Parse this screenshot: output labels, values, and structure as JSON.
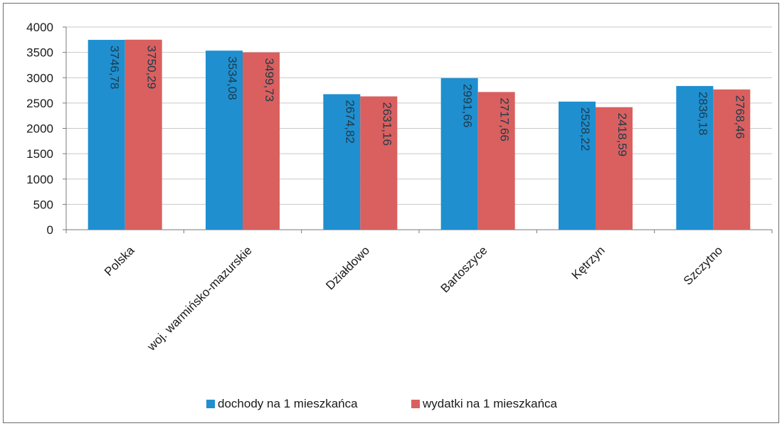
{
  "chart_data": {
    "type": "bar",
    "title": "",
    "xlabel": "",
    "ylabel": "",
    "ylim": [
      0,
      4000
    ],
    "yticks": [
      0,
      500,
      1000,
      1500,
      2000,
      2500,
      3000,
      3500,
      4000
    ],
    "grid": true,
    "legend_position": "bottom",
    "categories": [
      "Polska",
      "woj. warmińsko-mazurskie",
      "Działdowo",
      "Bartoszyce",
      "Kętrzyn",
      "Szczytno"
    ],
    "series": [
      {
        "name": "dochody na 1 mieszkańca",
        "color": "#1f8fd0",
        "values": [
          3746.78,
          3534.08,
          2674.82,
          2991.66,
          2528.22,
          2836.18
        ],
        "labels": [
          "3746,78",
          "3534,08",
          "2674,82",
          "2991,66",
          "2528,22",
          "2836,18"
        ]
      },
      {
        "name": "wydatki na 1 mieszkańca",
        "color": "#d9605f",
        "values": [
          3750.29,
          3499.73,
          2631.16,
          2717.66,
          2418.59,
          2768.46
        ],
        "labels": [
          "3750,29",
          "3499,73",
          "2631,16",
          "2717,66",
          "2418,59",
          "2768,46"
        ]
      }
    ]
  },
  "colors": {
    "gridline": "#c8c8c8",
    "axis": "#7a7a7a",
    "frame": "#6b6b6b"
  }
}
